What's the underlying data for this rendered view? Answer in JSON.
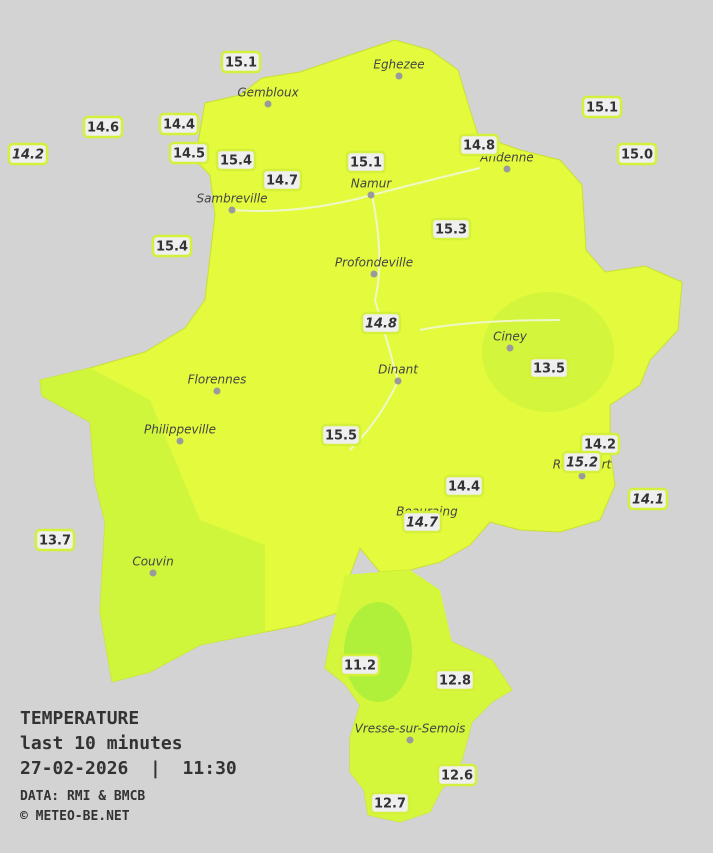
{
  "legend": {
    "title": "TEMPERATURE",
    "subtitle": "last 10 minutes",
    "datetime": "27-02-2026  |  11:30",
    "source": "DATA: RMI & BMCB",
    "credit": "© METEO-BE.NET"
  },
  "stations": [
    {
      "label": "15.1"
    },
    {
      "label": "14.6"
    },
    {
      "label": "14.4"
    },
    {
      "label": "14.2",
      "italic": true
    },
    {
      "label": "14.5"
    },
    {
      "label": "15.4"
    },
    {
      "label": "14.7"
    },
    {
      "label": "15.1"
    },
    {
      "label": "14.8"
    },
    {
      "label": "15.1"
    },
    {
      "label": "15.0"
    },
    {
      "label": "15.4"
    },
    {
      "label": "15.3"
    },
    {
      "label": "14.8",
      "italic": true
    },
    {
      "label": "13.5"
    },
    {
      "label": "15.5"
    },
    {
      "label": "14.2"
    },
    {
      "label": "15.2",
      "italic": true
    },
    {
      "label": "14.1",
      "italic": true
    },
    {
      "label": "14.4"
    },
    {
      "label": "14.7",
      "italic": true
    },
    {
      "label": "13.7"
    },
    {
      "label": "11.2"
    },
    {
      "label": "12.8"
    },
    {
      "label": "12.6"
    },
    {
      "label": "12.7"
    }
  ],
  "places": [
    "Eghezee",
    "Gembloux",
    "Andenne",
    "Namur",
    "Sambreville",
    "Profondeville",
    "Ciney",
    "Dinant",
    "Florennes",
    "Philippeville",
    "Couvin",
    "Vresse-sur-Semois",
    "Rochefort",
    "Beauraing"
  ]
}
